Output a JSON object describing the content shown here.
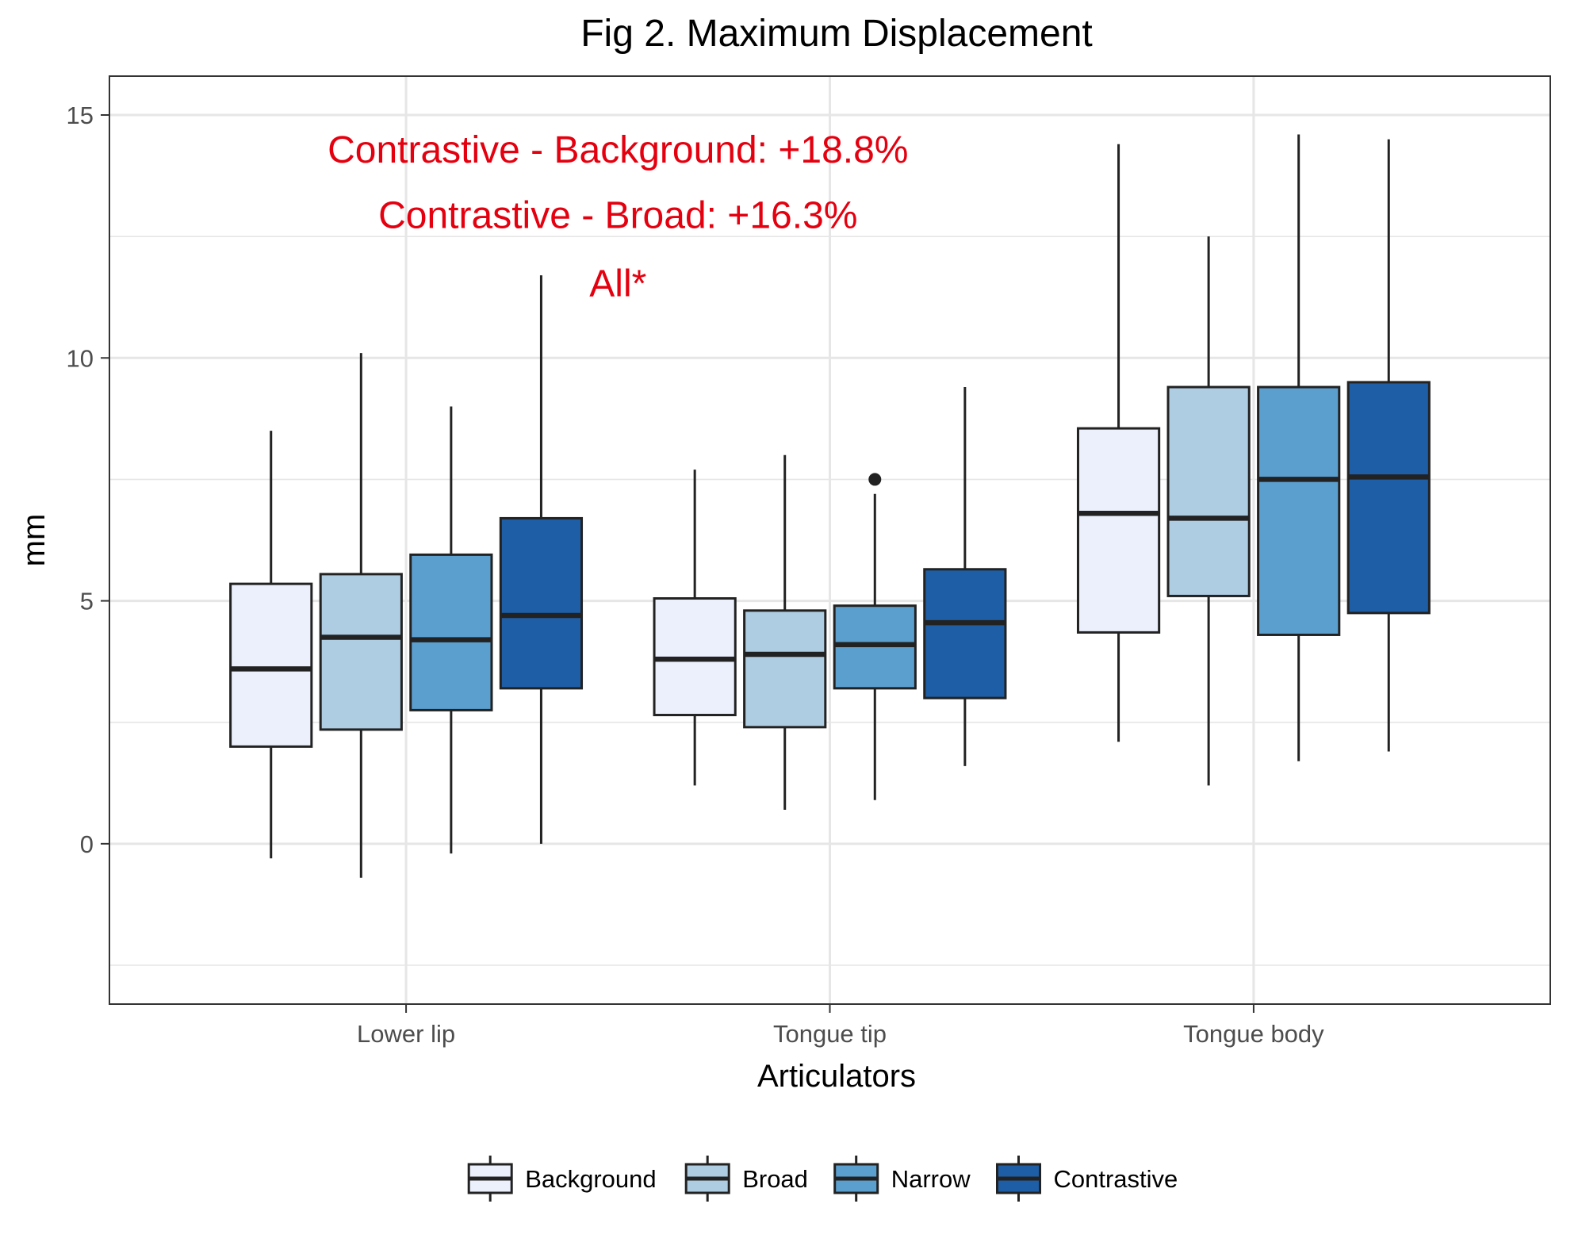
{
  "chart_data": {
    "type": "boxplot",
    "title": "Fig 2. Maximum Displacement",
    "xlabel": "Articulators",
    "ylabel": "mm",
    "ylim": [
      -3.3,
      15.8
    ],
    "yticks": [
      0,
      5,
      10,
      15
    ],
    "grid": true,
    "legend_position": "bottom",
    "categories": [
      "Lower lip",
      "Tongue tip",
      "Tongue body"
    ],
    "series": [
      {
        "name": "Background",
        "color": "#EBF0FC",
        "boxes": [
          {
            "min": -0.3,
            "q1": 2.0,
            "median": 3.6,
            "q3": 5.35,
            "max": 8.5,
            "outliers": []
          },
          {
            "min": 1.2,
            "q1": 2.65,
            "median": 3.8,
            "q3": 5.05,
            "max": 7.7,
            "outliers": []
          },
          {
            "min": 2.1,
            "q1": 4.35,
            "median": 6.8,
            "q3": 8.55,
            "max": 14.4,
            "outliers": []
          }
        ]
      },
      {
        "name": "Broad",
        "color": "#AECDE2",
        "boxes": [
          {
            "min": -0.7,
            "q1": 2.35,
            "median": 4.25,
            "q3": 5.55,
            "max": 10.1,
            "outliers": []
          },
          {
            "min": 0.7,
            "q1": 2.4,
            "median": 3.9,
            "q3": 4.8,
            "max": 8.0,
            "outliers": []
          },
          {
            "min": 1.2,
            "q1": 5.1,
            "median": 6.7,
            "q3": 9.4,
            "max": 12.5,
            "outliers": []
          }
        ]
      },
      {
        "name": "Narrow",
        "color": "#5B9FCF",
        "boxes": [
          {
            "min": -0.2,
            "q1": 2.75,
            "median": 4.2,
            "q3": 5.95,
            "max": 9.0,
            "outliers": []
          },
          {
            "min": 0.9,
            "q1": 3.2,
            "median": 4.1,
            "q3": 4.9,
            "max": 7.2,
            "outliers": [
              7.5
            ]
          },
          {
            "min": 1.7,
            "q1": 4.3,
            "median": 7.5,
            "q3": 9.4,
            "max": 14.6,
            "outliers": []
          }
        ]
      },
      {
        "name": "Contrastive",
        "color": "#1E5EA6",
        "boxes": [
          {
            "min": 0.0,
            "q1": 3.2,
            "median": 4.7,
            "q3": 6.7,
            "max": 11.7,
            "outliers": []
          },
          {
            "min": 1.6,
            "q1": 3.0,
            "median": 4.55,
            "q3": 5.65,
            "max": 9.4,
            "outliers": []
          },
          {
            "min": 1.9,
            "q1": 4.75,
            "median": 7.55,
            "q3": 9.5,
            "max": 14.5,
            "outliers": []
          }
        ]
      }
    ],
    "annotations": [
      "Contrastive - Background: +18.8%",
      "Contrastive - Broad: +16.3%",
      "All*"
    ],
    "annotation_color": "#E4000F"
  }
}
